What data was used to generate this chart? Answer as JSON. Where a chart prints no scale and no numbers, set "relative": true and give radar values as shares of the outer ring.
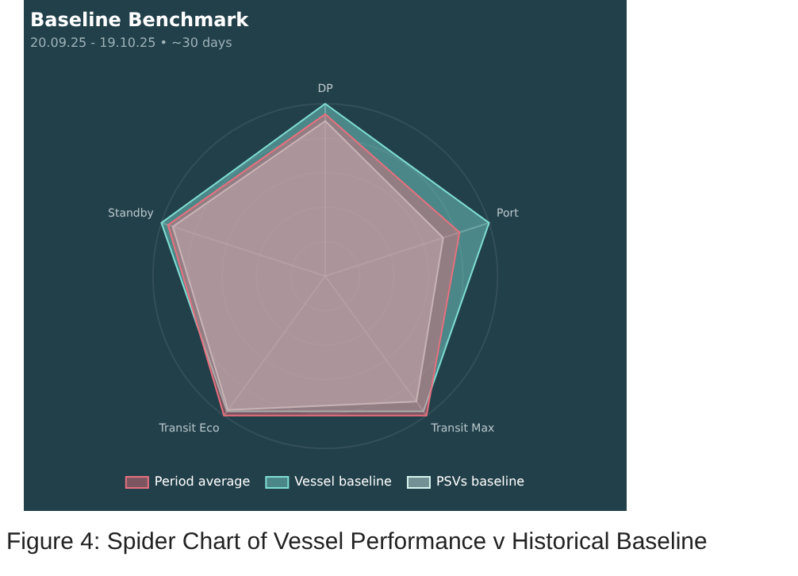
{
  "chart_data": {
    "type": "radar",
    "title": "Baseline Benchmark",
    "subtitle": "20.09.25 - 19.10.25 • ~30 days",
    "annotations": [
      "Figure 4: Spider Chart of Vessel Performance v Historical Baseline"
    ],
    "categories": [
      "DP",
      "Port",
      "Transit Max",
      "Transit Eco",
      "Standby"
    ],
    "relative": true,
    "grid": true,
    "legend": "bottom",
    "series": [
      {
        "name": "Period average",
        "color": "#e8707e",
        "values": [
          0.94,
          0.82,
          1.0,
          1.0,
          0.96
        ]
      },
      {
        "name": "Vessel baseline",
        "color": "#7fded4",
        "values": [
          1.0,
          1.0,
          0.97,
          0.97,
          1.0
        ]
      },
      {
        "name": "PSVs baseline",
        "color": "#d6f3ef",
        "values": [
          0.9,
          0.72,
          0.9,
          0.96,
          0.93
        ]
      }
    ]
  }
}
